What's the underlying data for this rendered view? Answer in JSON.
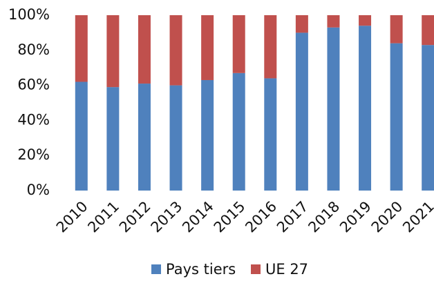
{
  "chart_data": {
    "type": "stacked_bar",
    "categories": [
      "2010",
      "2011",
      "2012",
      "2013",
      "2014",
      "2015",
      "2016",
      "2017",
      "2018",
      "2019",
      "2020",
      "2021"
    ],
    "series": [
      {
        "name": "Pays tiers",
        "color": "#4f81bd",
        "values": [
          62,
          59,
          61,
          60,
          63,
          67,
          64,
          90,
          93,
          94,
          84,
          83
        ]
      },
      {
        "name": "UE 27",
        "color": "#c0504d",
        "values": [
          38,
          41,
          39,
          40,
          37,
          33,
          36,
          10,
          7,
          6,
          16,
          17
        ]
      }
    ],
    "ylim": [
      0,
      100
    ],
    "yticks": [
      {
        "value": 0,
        "label": "0%"
      },
      {
        "value": 20,
        "label": "20%"
      },
      {
        "value": 40,
        "label": "40%"
      },
      {
        "value": 60,
        "label": "60%"
      },
      {
        "value": 80,
        "label": "80%"
      },
      {
        "value": 100,
        "label": "100%"
      }
    ],
    "grid": false,
    "legend": "bottom"
  }
}
